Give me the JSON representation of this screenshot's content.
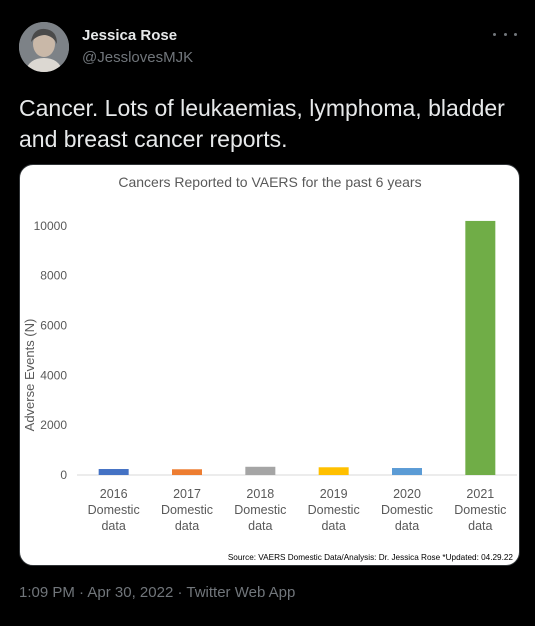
{
  "user": {
    "name": "Jessica Rose",
    "handle": "@JesslovesMJK"
  },
  "tweet": {
    "text": "Cancer. Lots of leukaemias, lymphoma, bladder and breast cancer reports."
  },
  "meta": {
    "time": "1:09 PM",
    "sep": "·",
    "date": "Apr 30, 2022",
    "source": "Twitter Web App"
  },
  "chart_data": {
    "type": "bar",
    "title": "Cancers Reported to VAERS for the past 6 years",
    "ylabel": "Adverse Events (N)",
    "xlabel": "",
    "ylim": [
      0,
      11000
    ],
    "yticks": [
      0,
      2000,
      4000,
      6000,
      8000,
      10000
    ],
    "categories": [
      {
        "year": "2016",
        "line2": "Domestic",
        "line3": "data"
      },
      {
        "year": "2017",
        "line2": "Domestic",
        "line3": "data"
      },
      {
        "year": "2018",
        "line2": "Domestic",
        "line3": "data"
      },
      {
        "year": "2019",
        "line2": "Domestic",
        "line3": "data"
      },
      {
        "year": "2020",
        "line2": "Domestic",
        "line3": "data"
      },
      {
        "year": "2021",
        "line2": "Domestic",
        "line3": "data"
      }
    ],
    "values": [
      240,
      230,
      330,
      310,
      280,
      10200
    ],
    "colors": [
      "#4472c4",
      "#ed7d31",
      "#a5a5a5",
      "#ffc000",
      "#5b9bd5",
      "#70ad47"
    ],
    "source_note": "Source: VAERS Domestic Data/Analysis: Dr. Jessica Rose *Updated: 04.29.22"
  }
}
